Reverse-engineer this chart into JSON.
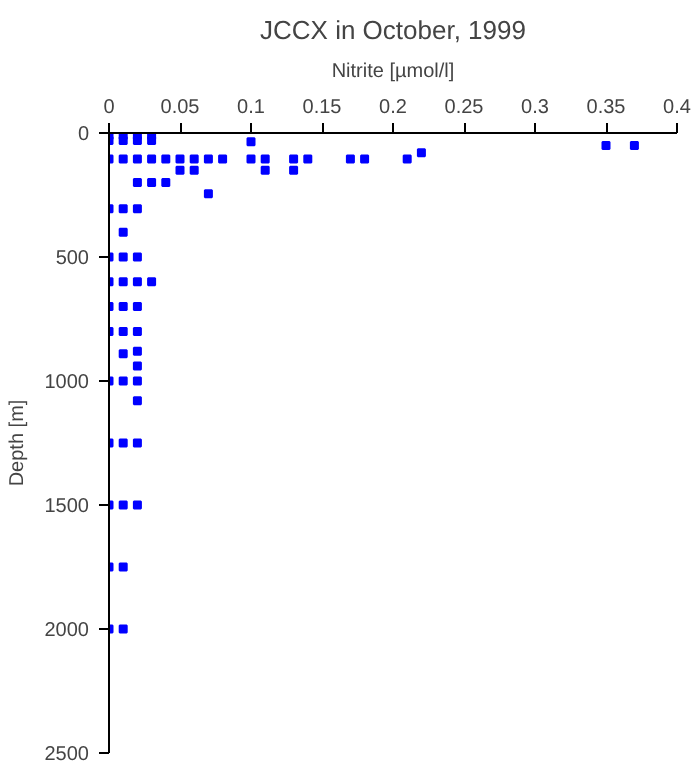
{
  "chart_data": {
    "type": "scatter",
    "title": "JCCX in October, 1999",
    "xlabel": "Nitrite [µmol/l]",
    "ylabel": "Depth [m]",
    "x": [
      0,
      0.01,
      0.02,
      0.03,
      0,
      0.01,
      0.02,
      0.03,
      0.1,
      0.35,
      0.37,
      0,
      0.01,
      0.02,
      0.03,
      0.04,
      0.05,
      0.06,
      0.07,
      0.08,
      0.1,
      0.11,
      0.13,
      0.14,
      0.17,
      0.18,
      0.21,
      0.22,
      0.05,
      0.06,
      0.11,
      0.13,
      0.02,
      0.03,
      0.04,
      0.07,
      0,
      0.01,
      0.02,
      0.01,
      0,
      0.01,
      0.02,
      0,
      0.01,
      0.02,
      0.03,
      0,
      0.01,
      0.02,
      0,
      0.01,
      0.02,
      0.01,
      0.02,
      0.02,
      0,
      0.01,
      0.02,
      0.02,
      0,
      0.01,
      0.02,
      0,
      0.01,
      0.02,
      0,
      0.01,
      0,
      0.01
    ],
    "values": [
      10,
      10,
      10,
      10,
      30,
      30,
      30,
      30,
      35,
      50,
      50,
      105,
      105,
      105,
      105,
      105,
      105,
      105,
      105,
      105,
      105,
      105,
      105,
      105,
      105,
      105,
      105,
      80,
      150,
      150,
      150,
      150,
      200,
      200,
      200,
      245,
      305,
      305,
      305,
      400,
      500,
      500,
      500,
      600,
      600,
      600,
      600,
      700,
      700,
      700,
      800,
      800,
      800,
      890,
      880,
      940,
      1000,
      1000,
      1000,
      1080,
      1250,
      1250,
      1250,
      1500,
      1500,
      1500,
      1750,
      1750,
      2000,
      2000
    ],
    "color": "#0000ff",
    "marker": "square",
    "xlim": [
      0,
      0.4
    ],
    "xticks": [
      0,
      0.05,
      0.1,
      0.15,
      0.2,
      0.25,
      0.3,
      0.35,
      0.4
    ],
    "ylim": [
      2500,
      0
    ],
    "yticks": [
      0,
      500,
      1000,
      1500,
      2000,
      2500
    ],
    "grid": false
  }
}
